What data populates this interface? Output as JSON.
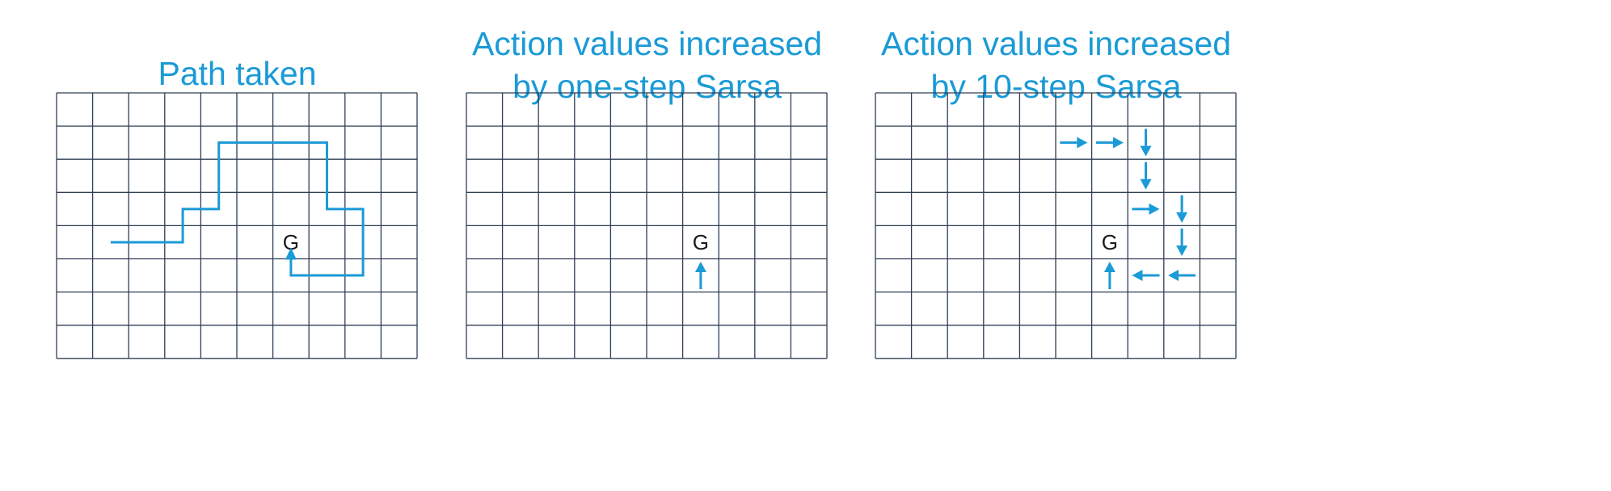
{
  "colors": {
    "accent": "#1a9ad6",
    "grid_line": "#2e3f54",
    "goal_text": "#1a1a1a"
  },
  "grid": {
    "columns": 10,
    "rows": 8,
    "goal_label": "G",
    "goal_cell": [
      6,
      4
    ]
  },
  "panels": [
    {
      "id": "path-taken",
      "title": "Path taken",
      "path": [
        [
          1.5,
          4.5
        ],
        [
          3.5,
          4.5
        ],
        [
          3.5,
          3.5
        ],
        [
          4.5,
          3.5
        ],
        [
          4.5,
          1.5
        ],
        [
          7.5,
          1.5
        ],
        [
          7.5,
          3.5
        ],
        [
          8.5,
          3.5
        ],
        [
          8.5,
          5.5
        ],
        [
          6.5,
          5.5
        ],
        [
          6.5,
          5.0
        ]
      ]
    },
    {
      "id": "one-step-sarsa",
      "title": "Action values increased\nby one-step Sarsa",
      "arrows": [
        {
          "cell": [
            6,
            5
          ],
          "direction": "up"
        }
      ]
    },
    {
      "id": "ten-step-sarsa",
      "title": "Action values increased\nby 10-step Sarsa",
      "arrows": [
        {
          "cell": [
            5,
            1
          ],
          "direction": "right"
        },
        {
          "cell": [
            6,
            1
          ],
          "direction": "right"
        },
        {
          "cell": [
            7,
            1
          ],
          "direction": "down"
        },
        {
          "cell": [
            7,
            2
          ],
          "direction": "down"
        },
        {
          "cell": [
            7,
            3
          ],
          "direction": "right"
        },
        {
          "cell": [
            8,
            3
          ],
          "direction": "down"
        },
        {
          "cell": [
            8,
            4
          ],
          "direction": "down"
        },
        {
          "cell": [
            8,
            5
          ],
          "direction": "left"
        },
        {
          "cell": [
            7,
            5
          ],
          "direction": "left"
        },
        {
          "cell": [
            6,
            5
          ],
          "direction": "up"
        }
      ]
    }
  ]
}
